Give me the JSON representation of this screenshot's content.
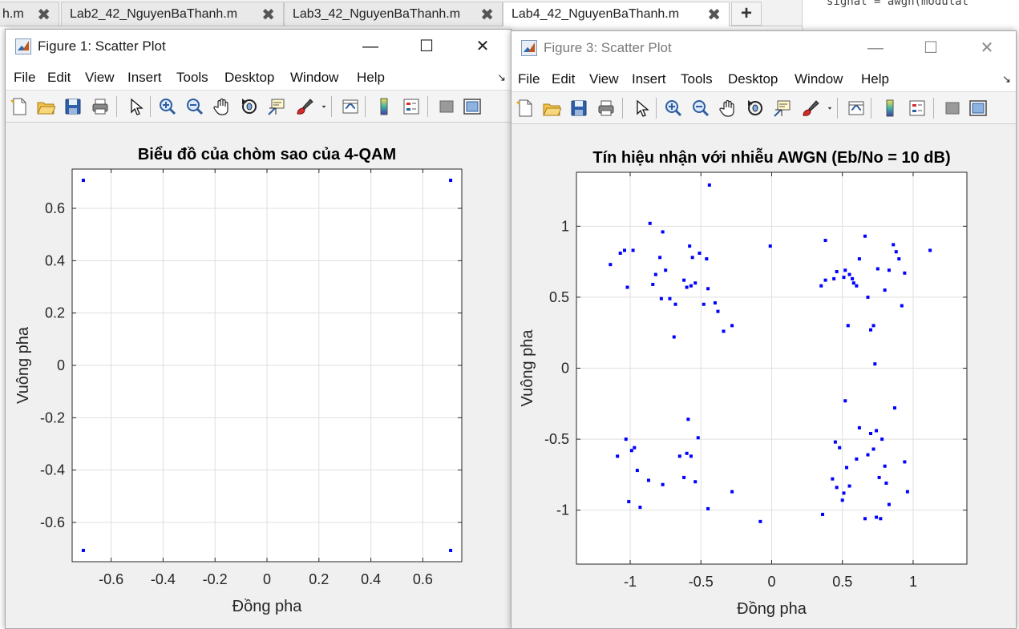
{
  "editor": {
    "tabs": [
      {
        "label": "h.m",
        "close": "✖"
      },
      {
        "label": "Lab2_42_NguyenBaThanh.m",
        "close": "✖"
      },
      {
        "label": "Lab3_42_NguyenBaThanh.m",
        "close": "✖"
      },
      {
        "label": "Lab4_42_NguyenBaThanh.m",
        "close": "✖"
      }
    ],
    "add_tab": "+",
    "code_fragment": "signal = awgn(modulat"
  },
  "figure1": {
    "title": "Figure 1: Scatter Plot",
    "menus": [
      "File",
      "Edit",
      "View",
      "Insert",
      "Tools",
      "Desktop",
      "Window",
      "Help"
    ]
  },
  "figure3": {
    "title": "Figure 3: Scatter Plot",
    "menus": [
      "File",
      "Edit",
      "View",
      "Insert",
      "Tools",
      "Desktop",
      "Window",
      "Help"
    ]
  },
  "window_controls": {
    "minimize": "—",
    "maximize": "☐",
    "close": "✕"
  },
  "toolbar_icons": [
    "new-figure-icon",
    "open-file-icon",
    "save-icon",
    "print-icon",
    "select-arrow-icon",
    "zoom-in-icon",
    "zoom-out-icon",
    "pan-hand-icon",
    "rotate-3d-icon",
    "data-cursor-icon",
    "brush-icon",
    "brush-dropdown-icon",
    "link-plot-icon",
    "colorbar-icon",
    "legend-icon",
    "hide-plot-tools-icon",
    "show-plot-tools-icon"
  ],
  "colors": {
    "marker": "#0000ff",
    "grid": "#dfdfdf",
    "axes": "#262626"
  },
  "chart_data": [
    {
      "type": "scatter",
      "title": "Biểu đồ của chòm sao của 4-QAM",
      "xlabel": "Đồng pha",
      "ylabel": "Vuông pha",
      "xlim": [
        -0.75,
        0.75
      ],
      "ylim": [
        -0.75,
        0.75
      ],
      "xticks": [
        -0.6,
        -0.4,
        -0.2,
        0,
        0.2,
        0.4,
        0.6
      ],
      "xtick_labels": [
        "-0.6",
        "-0.4",
        "-0.2",
        "0",
        "0.2",
        "0.4",
        "0.6"
      ],
      "yticks": [
        -0.6,
        -0.4,
        -0.2,
        0,
        0.2,
        0.4,
        0.6
      ],
      "ytick_labels": [
        "-0.6",
        "-0.4",
        "-0.2",
        "0",
        "0.2",
        "0.4",
        "0.6"
      ],
      "grid": true,
      "points": [
        [
          -0.707,
          0.707
        ],
        [
          0.707,
          0.707
        ],
        [
          -0.707,
          -0.707
        ],
        [
          0.707,
          -0.707
        ]
      ]
    },
    {
      "type": "scatter",
      "title": "Tín hiệu nhận với nhiễu AWGN (Eb/No = 10 dB)",
      "xlabel": "Đồng pha",
      "ylabel": "Vuông pha",
      "xlim": [
        -1.38,
        1.38
      ],
      "ylim": [
        -1.38,
        1.38
      ],
      "xticks": [
        -1,
        -0.5,
        0,
        0.5,
        1
      ],
      "xtick_labels": [
        "-1",
        "-0.5",
        "0",
        "0.5",
        "1"
      ],
      "yticks": [
        -1,
        -0.5,
        0,
        0.5,
        1
      ],
      "yticks_labels_note": "",
      "ytick_labels": [
        "-1",
        "-0.5",
        "0",
        "0.5",
        "1"
      ],
      "grid": true,
      "points": [
        [
          -1.14,
          0.73
        ],
        [
          -1.07,
          0.81
        ],
        [
          -1.04,
          0.83
        ],
        [
          -1.02,
          0.57
        ],
        [
          -0.98,
          0.83
        ],
        [
          -0.86,
          1.02
        ],
        [
          -0.84,
          0.59
        ],
        [
          -0.82,
          0.66
        ],
        [
          -0.79,
          0.78
        ],
        [
          -0.78,
          0.49
        ],
        [
          -0.77,
          0.96
        ],
        [
          -0.75,
          0.69
        ],
        [
          -0.72,
          0.49
        ],
        [
          -0.69,
          0.22
        ],
        [
          -0.62,
          0.62
        ],
        [
          -0.6,
          0.57
        ],
        [
          -0.58,
          0.86
        ],
        [
          -0.57,
          0.58
        ],
        [
          -0.56,
          0.78
        ],
        [
          -0.54,
          0.6
        ],
        [
          -0.51,
          0.81
        ],
        [
          -0.48,
          0.45
        ],
        [
          -0.46,
          0.77
        ],
        [
          -0.45,
          0.56
        ],
        [
          -0.44,
          1.29
        ],
        [
          -0.4,
          0.46
        ],
        [
          -0.38,
          0.4
        ],
        [
          -0.34,
          0.26
        ],
        [
          -0.28,
          0.3
        ],
        [
          -0.68,
          0.45
        ],
        [
          -0.01,
          0.86
        ],
        [
          0.35,
          0.58
        ],
        [
          0.38,
          0.9
        ],
        [
          0.38,
          0.62
        ],
        [
          0.44,
          0.63
        ],
        [
          0.46,
          0.68
        ],
        [
          0.51,
          0.64
        ],
        [
          0.52,
          0.69
        ],
        [
          0.55,
          0.66
        ],
        [
          0.57,
          0.63
        ],
        [
          0.58,
          0.6
        ],
        [
          0.6,
          0.58
        ],
        [
          0.62,
          0.77
        ],
        [
          0.66,
          0.93
        ],
        [
          0.68,
          0.5
        ],
        [
          0.7,
          0.27
        ],
        [
          0.72,
          0.3
        ],
        [
          0.73,
          0.03
        ],
        [
          0.75,
          0.7
        ],
        [
          0.8,
          0.55
        ],
        [
          0.83,
          0.69
        ],
        [
          0.86,
          0.87
        ],
        [
          0.88,
          0.82
        ],
        [
          0.9,
          0.77
        ],
        [
          0.92,
          0.44
        ],
        [
          0.94,
          0.67
        ],
        [
          1.12,
          0.83
        ],
        [
          0.54,
          0.3
        ],
        [
          -1.09,
          -0.62
        ],
        [
          -1.03,
          -0.5
        ],
        [
          -1.01,
          -0.94
        ],
        [
          -0.99,
          -0.58
        ],
        [
          -0.97,
          -0.56
        ],
        [
          -0.95,
          -0.72
        ],
        [
          -0.93,
          -0.98
        ],
        [
          -0.87,
          -0.79
        ],
        [
          -0.77,
          -0.82
        ],
        [
          -0.65,
          -0.62
        ],
        [
          -0.62,
          -0.77
        ],
        [
          -0.6,
          -0.6
        ],
        [
          -0.59,
          -0.36
        ],
        [
          -0.57,
          -0.62
        ],
        [
          -0.54,
          -0.8
        ],
        [
          -0.52,
          -0.49
        ],
        [
          -0.45,
          -0.99
        ],
        [
          -0.28,
          -0.87
        ],
        [
          -0.08,
          -1.08
        ],
        [
          0.36,
          -1.03
        ],
        [
          0.43,
          -0.78
        ],
        [
          0.45,
          -0.52
        ],
        [
          0.46,
          -0.84
        ],
        [
          0.48,
          -0.56
        ],
        [
          0.5,
          -0.93
        ],
        [
          0.51,
          -0.88
        ],
        [
          0.53,
          -0.7
        ],
        [
          0.55,
          -0.83
        ],
        [
          0.52,
          -0.23
        ],
        [
          0.6,
          -0.64
        ],
        [
          0.62,
          -0.42
        ],
        [
          0.66,
          -1.06
        ],
        [
          0.68,
          -0.61
        ],
        [
          0.7,
          -0.46
        ],
        [
          0.72,
          -0.57
        ],
        [
          0.74,
          -0.44
        ],
        [
          0.76,
          -0.77
        ],
        [
          0.77,
          -1.06
        ],
        [
          0.78,
          -0.5
        ],
        [
          0.8,
          -0.69
        ],
        [
          0.81,
          -0.81
        ],
        [
          0.83,
          -0.96
        ],
        [
          0.87,
          -0.28
        ],
        [
          0.94,
          -0.66
        ],
        [
          0.96,
          -0.87
        ],
        [
          0.74,
          -1.05
        ]
      ]
    }
  ]
}
